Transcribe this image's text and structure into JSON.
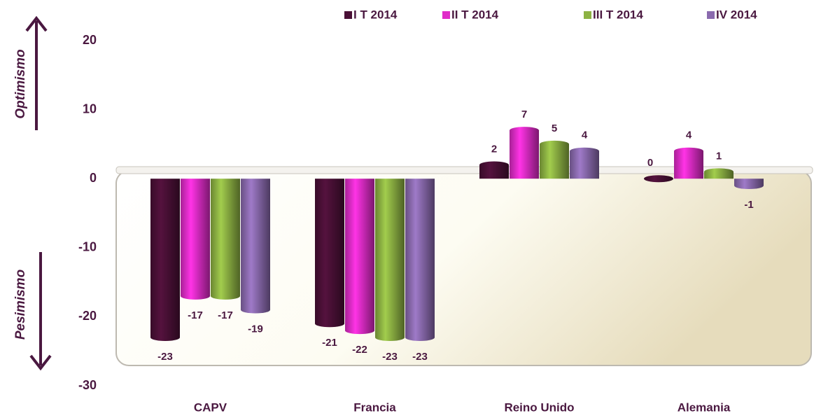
{
  "chart_data": {
    "type": "bar",
    "categories": [
      "CAPV",
      "Francia",
      "Reino Unido",
      "Alemania"
    ],
    "series": [
      {
        "name": "I T 2014",
        "color": "#4a1036",
        "values": [
          -23,
          -21,
          2,
          0
        ]
      },
      {
        "name": "II T 2014",
        "color": "#e02cc8",
        "values": [
          -17,
          -22,
          7,
          4
        ]
      },
      {
        "name": "III T 2014",
        "color": "#8db243",
        "values": [
          -17,
          -23,
          5,
          1
        ]
      },
      {
        "name": "IV 2014",
        "color": "#8a6aae",
        "values": [
          -19,
          -23,
          4,
          -1
        ]
      }
    ],
    "annotations": [
      "Optimismo",
      "Pesimismo"
    ],
    "ylim": [
      -30,
      20
    ],
    "yticks": [
      -30,
      -20,
      -10,
      0,
      10,
      20
    ],
    "legend": "top"
  }
}
